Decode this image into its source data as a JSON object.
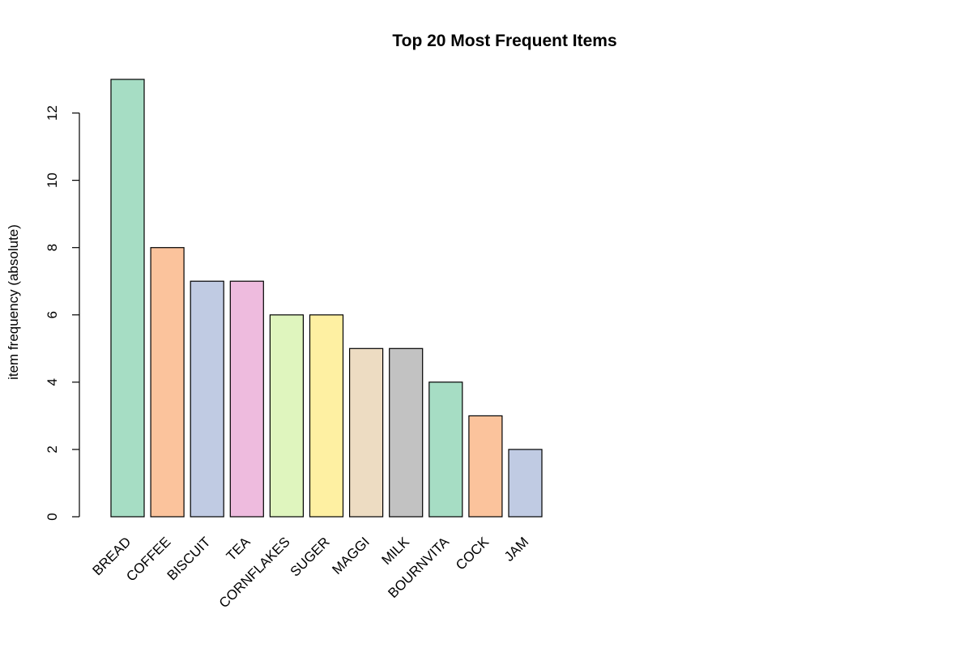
{
  "chart_data": {
    "type": "bar",
    "title": "Top 20 Most Frequent Items",
    "xlabel": "",
    "ylabel": "item frequency (absolute)",
    "categories": [
      "BREAD",
      "COFFEE",
      "BISCUIT",
      "TEA",
      "CORNFLAKES",
      "SUGER",
      "MAGGI",
      "MILK",
      "BOURNVITA",
      "COCK",
      "JAM"
    ],
    "values": [
      13,
      8,
      7,
      7,
      6,
      6,
      5,
      5,
      4,
      3,
      2
    ],
    "colors": [
      "#A6DDC4",
      "#FBC39C",
      "#C0CBE3",
      "#EEBBDE",
      "#DFF5BE",
      "#FEF0A2",
      "#EDDCC2",
      "#C2C2C2",
      "#A6DDC4",
      "#FBC39C",
      "#C0CBE3"
    ],
    "bar_border_color": "#000000",
    "yticks": [
      0,
      2,
      4,
      6,
      8,
      10,
      12
    ],
    "ylim": [
      0,
      13
    ],
    "grid": false,
    "legend": "none"
  }
}
